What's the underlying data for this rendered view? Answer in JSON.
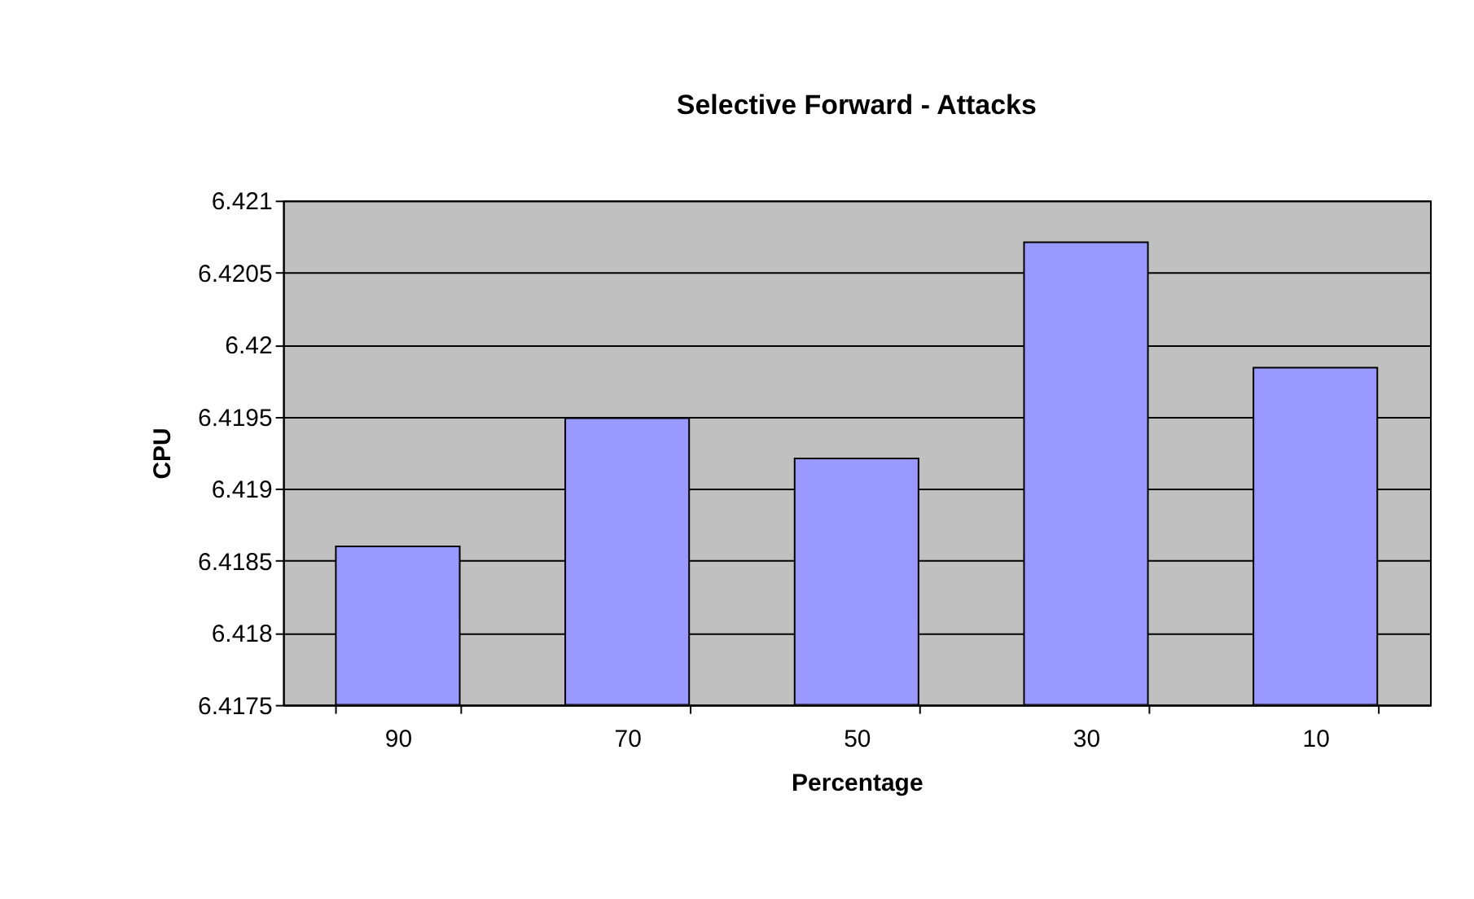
{
  "chart_data": {
    "type": "bar",
    "title": "Selective Forward - Attacks",
    "xlabel": "Percentage",
    "ylabel": "CPU",
    "categories": [
      "90",
      "70",
      "50",
      "30",
      "10"
    ],
    "values": [
      6.4186,
      6.41949,
      6.41921,
      6.42071,
      6.41984
    ],
    "color": "#9999ff",
    "ylim": [
      6.4175,
      6.421
    ],
    "yticks": [
      6.4175,
      6.418,
      6.4185,
      6.419,
      6.4195,
      6.42,
      6.4205,
      6.421
    ],
    "grid": "y"
  }
}
